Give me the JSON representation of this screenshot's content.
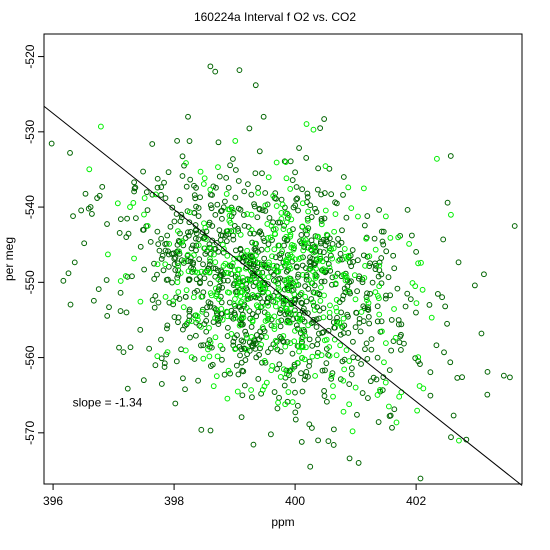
{
  "chart_data": {
    "type": "scatter",
    "title": "160224a   Interval f O2 vs. CO2",
    "xlabel": "ppm",
    "ylabel": "per meg",
    "xlim": [
      395.85,
      403.75
    ],
    "ylim": [
      -576.8,
      -517.0
    ],
    "xticks": [
      396,
      398,
      400,
      402
    ],
    "yticks": [
      -520,
      -530,
      -540,
      -550,
      -560,
      -570
    ],
    "grid": false,
    "annotation": {
      "text": "slope =  -1.34",
      "x": 397.0,
      "y": -566.0
    },
    "fit_line": {
      "slope": -1.34,
      "points": [
        [
          395.85,
          -526.6
        ],
        [
          403.75,
          -577.0
        ]
      ]
    },
    "series": [
      {
        "color": "#006400",
        "generator": {
          "n": 980,
          "seed": 1337,
          "x_mean": 399.55,
          "x_sd": 1.25,
          "slope": -1.34,
          "y_center": -550.7,
          "y_sd": 7.4
        }
      },
      {
        "color": "#00ee00",
        "generator": {
          "n": 460,
          "seed": 7331,
          "x_mean": 399.6,
          "x_sd": 1.0,
          "slope": -1.34,
          "y_center": -550.3,
          "y_sd": 7.0
        }
      }
    ],
    "points": [
      {
        "x": 396.17,
        "y": -549.8,
        "c": 0
      },
      {
        "x": 396.28,
        "y": -532.8,
        "c": 0
      },
      {
        "x": 396.33,
        "y": -541.2,
        "c": 0
      },
      {
        "x": 396.62,
        "y": -540.0,
        "c": 0
      },
      {
        "x": 396.77,
        "y": -538.5,
        "c": 0
      },
      {
        "x": 397.07,
        "y": -539.5,
        "c": 1
      },
      {
        "x": 397.12,
        "y": -541.6,
        "c": 0
      },
      {
        "x": 398.6,
        "y": -521.3,
        "c": 0
      },
      {
        "x": 398.68,
        "y": -522.0,
        "c": 0
      },
      {
        "x": 399.08,
        "y": -521.8,
        "c": 0
      },
      {
        "x": 399.35,
        "y": -523.8,
        "c": 0
      },
      {
        "x": 398.23,
        "y": -528.0,
        "c": 0
      },
      {
        "x": 399.48,
        "y": -528.0,
        "c": 0
      },
      {
        "x": 400.48,
        "y": -528.3,
        "c": 0
      },
      {
        "x": 402.22,
        "y": -553.0,
        "c": 0
      },
      {
        "x": 402.48,
        "y": -553.2,
        "c": 0
      },
      {
        "x": 403.08,
        "y": -556.8,
        "c": 0
      },
      {
        "x": 403.18,
        "y": -561.9,
        "c": 0
      },
      {
        "x": 403.45,
        "y": -562.4,
        "c": 0
      },
      {
        "x": 402.83,
        "y": -570.9,
        "c": 0
      },
      {
        "x": 402.68,
        "y": -562.7,
        "c": 0
      },
      {
        "x": 402.76,
        "y": -562.6,
        "c": 0
      },
      {
        "x": 402.62,
        "y": -567.7,
        "c": 0
      },
      {
        "x": 400.25,
        "y": -574.5,
        "c": 0
      },
      {
        "x": 400.9,
        "y": -573.4,
        "c": 0
      },
      {
        "x": 401.05,
        "y": -574.0,
        "c": 0
      },
      {
        "x": 398.02,
        "y": -566.1,
        "c": 0
      },
      {
        "x": 398.45,
        "y": -569.6,
        "c": 0
      },
      {
        "x": 397.5,
        "y": -563.0,
        "c": 0
      },
      {
        "x": 401.72,
        "y": -565.2,
        "c": 1
      },
      {
        "x": 401.55,
        "y": -566.5,
        "c": 1
      },
      {
        "x": 400.8,
        "y": -567.2,
        "c": 1
      },
      {
        "x": 400.95,
        "y": -569.8,
        "c": 1
      },
      {
        "x": 400.55,
        "y": -571.1,
        "c": 0
      },
      {
        "x": 400.38,
        "y": -571.0,
        "c": 0
      },
      {
        "x": 399.6,
        "y": -570.2,
        "c": 0
      }
    ]
  }
}
